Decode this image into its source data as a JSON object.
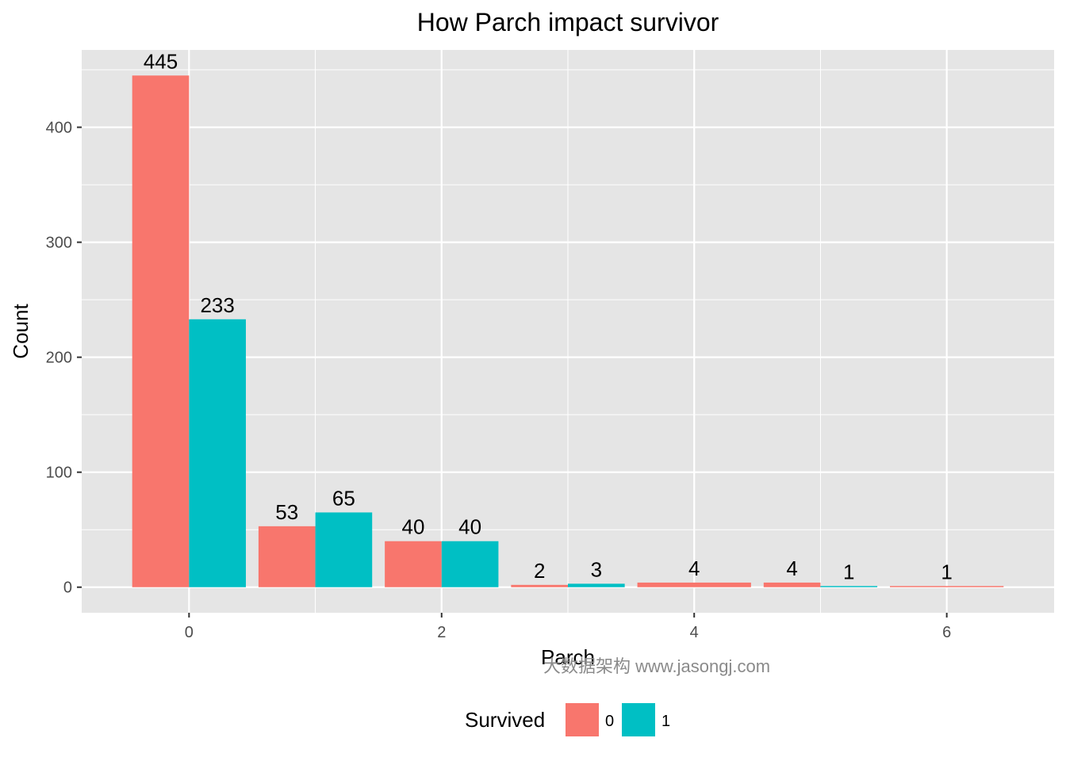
{
  "chart_data": {
    "type": "bar",
    "title": "How Parch impact survivor",
    "xlabel": "Parch",
    "ylabel": "Count",
    "x_ticks": [
      0,
      2,
      4,
      6
    ],
    "y_ticks": [
      0,
      100,
      200,
      300,
      400
    ],
    "xlim": [
      -0.85,
      6.85
    ],
    "ylim": [
      -22.25,
      467.25
    ],
    "grid": true,
    "legend": {
      "title": "Survived",
      "position": "bottom",
      "entries": [
        {
          "label": "0",
          "color": "#F8766D"
        },
        {
          "label": "1",
          "color": "#00BFC4"
        }
      ]
    },
    "bars": [
      {
        "parch": 0,
        "survived": "0",
        "count": 445,
        "label": "445"
      },
      {
        "parch": 0,
        "survived": "1",
        "count": 233,
        "label": "233"
      },
      {
        "parch": 1,
        "survived": "0",
        "count": 53,
        "label": "53"
      },
      {
        "parch": 1,
        "survived": "1",
        "count": 65,
        "label": "65"
      },
      {
        "parch": 2,
        "survived": "0",
        "count": 40,
        "label": "40"
      },
      {
        "parch": 2,
        "survived": "1",
        "count": 40,
        "label": "40"
      },
      {
        "parch": 3,
        "survived": "0",
        "count": 2,
        "label": "2"
      },
      {
        "parch": 3,
        "survived": "1",
        "count": 3,
        "label": "3"
      },
      {
        "parch": 4,
        "survived": "0",
        "count": 4,
        "label": "4",
        "full_width": true
      },
      {
        "parch": 5,
        "survived": "0",
        "count": 4,
        "label": "4"
      },
      {
        "parch": 5,
        "survived": "1",
        "count": 1,
        "label": "1"
      },
      {
        "parch": 6,
        "survived": "0",
        "count": 1,
        "label": "1",
        "full_width": true
      }
    ],
    "colors": {
      "panel": "#E5E5E5",
      "grid": "#FFFFFF"
    }
  },
  "watermark": "大数据架构  www.jasongj.com"
}
